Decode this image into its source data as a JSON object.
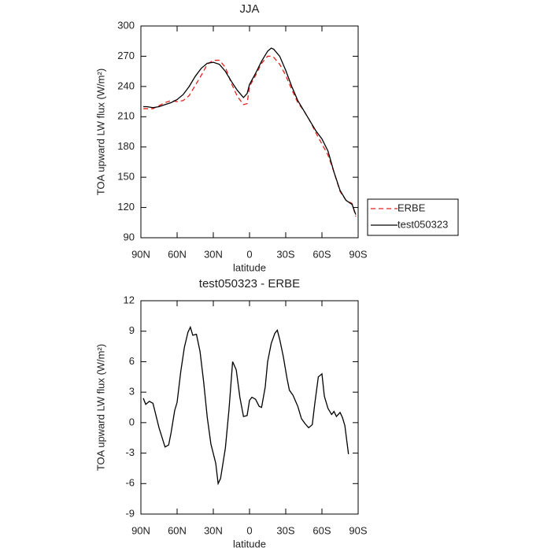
{
  "chart_data": [
    {
      "type": "line",
      "title": "JJA",
      "xlabel": "latitude",
      "ylabel": "TOA upward LW flux (W/m²)",
      "x": [
        88,
        85,
        80,
        75,
        70,
        65,
        60,
        55,
        50,
        45,
        40,
        35,
        30,
        25,
        20,
        15,
        10,
        5,
        2,
        0,
        -5,
        -10,
        -15,
        -18,
        -20,
        -25,
        -30,
        -35,
        -40,
        -45,
        -50,
        -55,
        -60,
        -65,
        -70,
        -75,
        -80,
        -85,
        -88
      ],
      "series": [
        {
          "name": "ERBE",
          "color": "#e8231f",
          "dash": true,
          "values": [
            218,
            218,
            218,
            221,
            224,
            226,
            225,
            226,
            231,
            241,
            251,
            262,
            266,
            266,
            259,
            243,
            230,
            222,
            223,
            240,
            251,
            263,
            270,
            270,
            269,
            262,
            251,
            237,
            224,
            216,
            206,
            194,
            183,
            172,
            155,
            136,
            127,
            124,
            111
          ]
        },
        {
          "name": "test050323",
          "color": "#000000",
          "dash": false,
          "values": [
            220,
            220,
            219,
            220,
            222,
            224,
            227,
            232,
            240,
            250,
            258,
            263,
            264,
            262,
            255,
            245,
            236,
            229,
            233,
            242,
            253,
            265,
            275,
            278,
            277,
            270,
            256,
            240,
            226,
            216,
            206,
            196,
            188,
            176,
            155,
            137,
            127,
            123,
            113
          ]
        }
      ],
      "xlim": [
        90,
        -90
      ],
      "xticks": [
        {
          "value": 90,
          "label": "90N"
        },
        {
          "value": 60,
          "label": "60N"
        },
        {
          "value": 30,
          "label": "30N"
        },
        0,
        {
          "value": -30,
          "label": "30S"
        },
        {
          "value": -60,
          "label": "60S"
        },
        {
          "value": -90,
          "label": "90S"
        }
      ],
      "ylim": [
        90,
        300
      ],
      "yticks": [
        90,
        120,
        150,
        180,
        210,
        240,
        270,
        300
      ],
      "legend": "outside-right"
    },
    {
      "type": "line",
      "title": "test050323 - ERBE",
      "xlabel": "latitude",
      "ylabel": "TOA upward LW flux (W/m²)",
      "x": [
        88,
        86,
        83,
        80,
        75,
        70,
        67,
        65,
        62,
        60,
        57,
        54,
        51,
        49,
        47,
        44,
        41,
        38,
        35,
        32,
        28,
        26,
        24,
        20,
        17,
        14,
        11,
        8,
        5,
        2,
        0,
        -2,
        -5,
        -8,
        -10,
        -13,
        -15,
        -18,
        -21,
        -23,
        -25,
        -28,
        -31,
        -33,
        -36,
        -40,
        -43,
        -46,
        -49,
        -52,
        -54,
        -57,
        -60,
        -62,
        -65,
        -68,
        -70,
        -72,
        -75,
        -77,
        -79,
        -82
      ],
      "series": [
        {
          "name": "test050323 - ERBE",
          "color": "#000000",
          "dash": false,
          "values": [
            2.4,
            1.8,
            2.1,
            1.9,
            -0.5,
            -2.4,
            -2.2,
            -1.0,
            1.2,
            2.0,
            5.0,
            7.4,
            8.9,
            9.4,
            8.6,
            8.7,
            7.0,
            4.0,
            0.5,
            -2.1,
            -4.0,
            -6.0,
            -5.5,
            -2.5,
            1.3,
            6.0,
            5.2,
            2.5,
            0.6,
            0.7,
            2.2,
            2.5,
            2.3,
            1.6,
            1.5,
            3.5,
            6.0,
            7.8,
            8.8,
            9.1,
            8.2,
            6.5,
            4.4,
            3.2,
            2.7,
            1.6,
            0.4,
            -0.1,
            -0.5,
            -0.2,
            1.8,
            4.5,
            4.8,
            2.6,
            1.4,
            0.8,
            1.1,
            0.6,
            1.0,
            0.5,
            -0.3,
            -3.1
          ]
        }
      ],
      "xlim": [
        90,
        -90
      ],
      "xticks": [
        {
          "value": 90,
          "label": "90N"
        },
        {
          "value": 60,
          "label": "60N"
        },
        {
          "value": 30,
          "label": "30N"
        },
        0,
        {
          "value": -30,
          "label": "30S"
        },
        {
          "value": -60,
          "label": "60S"
        },
        {
          "value": -90,
          "label": "90S"
        }
      ],
      "ylim": [
        -9,
        12
      ],
      "yticks": [
        -9,
        -6,
        -3,
        0,
        3,
        6,
        9,
        12
      ]
    }
  ]
}
